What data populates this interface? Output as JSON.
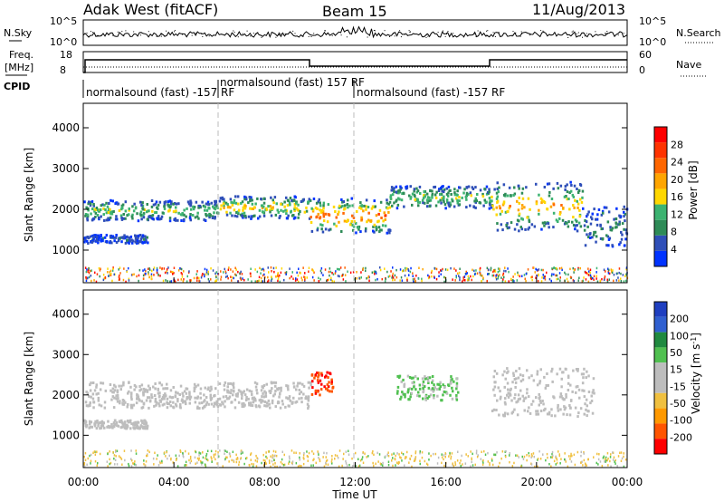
{
  "header": {
    "station": "Adak West (fitACF)",
    "beam": "Beam 15",
    "date": "11/Aug/2013"
  },
  "panels": {
    "noise": {
      "left_label": "N.Sky",
      "right_label": "N.Search",
      "left_ticks": [
        "10^5",
        "10^0"
      ],
      "right_ticks": [
        "10^5",
        "10^0"
      ]
    },
    "freq": {
      "left_label_top": "Freq.",
      "left_label_unit": "[MHz]",
      "right_label": "Nave",
      "left_ticks": [
        "18",
        "8"
      ],
      "right_ticks": [
        "60",
        "0"
      ]
    },
    "cpid": {
      "label": "CPID",
      "segments": [
        "normalsound (fast) -157 RF",
        "normalsound (fast) 157 RF",
        "normalsound (fast) -157 RF"
      ]
    }
  },
  "colors": {
    "power_scale": [
      "#0033ff",
      "#2f4fb8",
      "#2e8b57",
      "#3cb371",
      "#ffd700",
      "#ffa500",
      "#ff6600",
      "#ff3300",
      "#ff0000"
    ],
    "velocity_scale": [
      "#1f3fc0",
      "#3060d0",
      "#208a40",
      "#50c050",
      "#bdbdbd",
      "#bdbdbd",
      "#f0c040",
      "#ff9900",
      "#ff5500",
      "#ff0000"
    ]
  },
  "chart_data": [
    {
      "type": "heatmap",
      "title": "",
      "ylabel": "Slant Range [km]",
      "xlabel": "",
      "ylim": [
        200,
        4600
      ],
      "yticks": [
        "1000",
        "2000",
        "3000",
        "4000"
      ],
      "colorbar": {
        "label": "Power [dB]",
        "ticks": [
          "4",
          "8",
          "12",
          "16",
          "20",
          "24",
          "28"
        ],
        "range": [
          0,
          32
        ]
      },
      "bands": [
        {
          "x_hours": [
            0.0,
            6.0
          ],
          "range_km": [
            1750,
            2250
          ],
          "level_db": 14
        },
        {
          "x_hours": [
            6.0,
            10.0
          ],
          "range_km": [
            1800,
            2350
          ],
          "level_db": 18
        },
        {
          "x_hours": [
            10.0,
            13.5
          ],
          "range_km": [
            1450,
            2300
          ],
          "level_db": 24
        },
        {
          "x_hours": [
            13.5,
            18.0
          ],
          "range_km": [
            2050,
            2600
          ],
          "level_db": 14
        },
        {
          "x_hours": [
            18.0,
            22.0
          ],
          "range_km": [
            1500,
            2700
          ],
          "level_db": 20
        },
        {
          "x_hours": [
            22.0,
            24.0
          ],
          "range_km": [
            1100,
            2100
          ],
          "level_db": 8
        },
        {
          "x_hours": [
            0.0,
            2.8
          ],
          "range_km": [
            1200,
            1400
          ],
          "level_db": 6
        }
      ]
    },
    {
      "type": "heatmap",
      "title": "",
      "ylabel": "Slant Range [km]",
      "xlabel": "Time UT",
      "ylim": [
        200,
        4600
      ],
      "yticks": [
        "1000",
        "2000",
        "3000",
        "4000"
      ],
      "xticks": [
        "00:00",
        "04:00",
        "08:00",
        "12:00",
        "16:00",
        "20:00",
        "00:00"
      ],
      "xlim_hours": [
        0,
        24
      ],
      "colorbar": {
        "label": "Velocity [m s",
        "label_sup": "-1",
        "label_end": "]",
        "ticks": [
          "200",
          "100",
          "50",
          "15",
          "-15",
          "-50",
          "-100",
          "-200"
        ],
        "range": [
          -250,
          250
        ]
      },
      "bands": [
        {
          "x_hours": [
            0.0,
            10.0
          ],
          "range_km": [
            1700,
            2350
          ],
          "velocity": 0
        },
        {
          "x_hours": [
            10.0,
            11.0
          ],
          "range_km": [
            2000,
            2600
          ],
          "velocity": -200
        },
        {
          "x_hours": [
            13.8,
            16.5
          ],
          "range_km": [
            1900,
            2500
          ],
          "velocity": 60
        },
        {
          "x_hours": [
            18.0,
            22.5
          ],
          "range_km": [
            1500,
            2700
          ],
          "velocity": 0
        },
        {
          "x_hours": [
            0.0,
            2.8
          ],
          "range_km": [
            1200,
            1400
          ],
          "velocity": 0
        }
      ]
    }
  ]
}
